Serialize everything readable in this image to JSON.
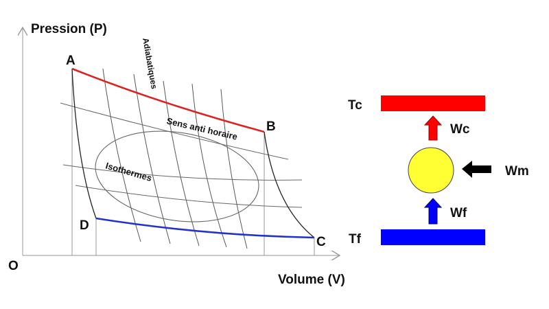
{
  "axes": {
    "y_label": "Pression (P)",
    "x_label": "Volume (V)",
    "origin": "O"
  },
  "points": {
    "a": "A",
    "b": "B",
    "c": "C",
    "d": "D"
  },
  "curve_labels": {
    "adiabatiques": "Adiabatiques",
    "sens": "Sens anti horaire",
    "isothermes": "Isothermes"
  },
  "engine": {
    "hot_reservoir": "Tc",
    "cold_reservoir": "Tf",
    "heat_hot": "Wc",
    "heat_cold": "Wf",
    "work": "Wm"
  },
  "colors": {
    "hot": "#ff0000",
    "cold": "#0000ff",
    "engine_fill": "#ffff33",
    "work_arrow": "#000000",
    "isotherm_hot": "#dd2222",
    "isotherm_cold": "#2233cc"
  }
}
